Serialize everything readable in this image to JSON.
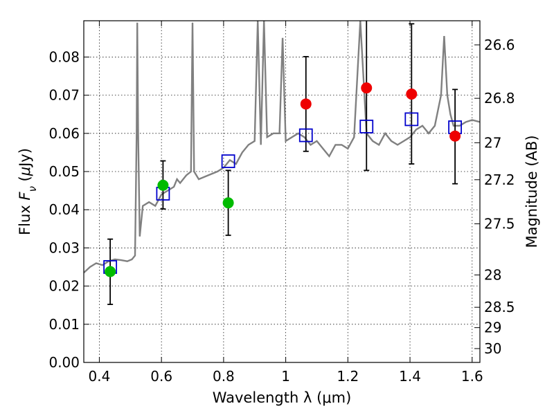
{
  "chart_data": {
    "type": "scatter",
    "xlabel": "Wavelength  λ (μm)",
    "ylabel": "Flux  Fν  (μJy)",
    "y2label": "Magnitude (AB)",
    "xlim": [
      0.35,
      1.625
    ],
    "ylim": [
      0.0,
      0.0895
    ],
    "grid": true,
    "x_ticks": [
      0.4,
      0.6,
      0.8,
      1.0,
      1.2,
      1.4,
      1.6
    ],
    "x_tick_labels": [
      "0.4",
      "0.6",
      "0.8",
      "1",
      "1.2",
      "1.4",
      "1.6"
    ],
    "y_ticks": [
      0.0,
      0.01,
      0.02,
      0.03,
      0.04,
      0.05,
      0.06,
      0.07,
      0.08
    ],
    "y_tick_labels": [
      "0.00",
      "0.01",
      "0.02",
      "0.03",
      "0.04",
      "0.05",
      "0.06",
      "0.07",
      "0.08"
    ],
    "y2_ticks": [
      {
        "mag": 26.6,
        "label": "26.6"
      },
      {
        "mag": 26.8,
        "label": "26.8"
      },
      {
        "mag": 27.0,
        "label": "27"
      },
      {
        "mag": 27.2,
        "label": "27.2"
      },
      {
        "mag": 27.5,
        "label": "27.5"
      },
      {
        "mag": 28.0,
        "label": "28"
      },
      {
        "mag": 28.5,
        "label": "28.5"
      },
      {
        "mag": 29.0,
        "label": "29"
      },
      {
        "mag": 30.0,
        "label": "30"
      }
    ],
    "series": [
      {
        "type": "line",
        "color": "#808080",
        "x": [
          0.35,
          0.37,
          0.39,
          0.41,
          0.43,
          0.45,
          0.47,
          0.49,
          0.505,
          0.515,
          0.52,
          0.522,
          0.525,
          0.53,
          0.54,
          0.56,
          0.58,
          0.6,
          0.62,
          0.64,
          0.65,
          0.66,
          0.68,
          0.695,
          0.7,
          0.705,
          0.72,
          0.75,
          0.78,
          0.8,
          0.81,
          0.82,
          0.84,
          0.86,
          0.88,
          0.9,
          0.91,
          0.92,
          0.93,
          0.94,
          0.96,
          0.98,
          0.99,
          1.0,
          1.02,
          1.04,
          1.06,
          1.08,
          1.1,
          1.12,
          1.14,
          1.16,
          1.18,
          1.2,
          1.22,
          1.24,
          1.26,
          1.28,
          1.3,
          1.32,
          1.34,
          1.36,
          1.38,
          1.4,
          1.42,
          1.44,
          1.46,
          1.48,
          1.5,
          1.51,
          1.52,
          1.53,
          1.54,
          1.56,
          1.58,
          1.6,
          1.625
        ],
        "y": [
          0.0235,
          0.025,
          0.026,
          0.0255,
          0.0265,
          0.027,
          0.0268,
          0.0265,
          0.027,
          0.028,
          0.06,
          0.089,
          0.06,
          0.033,
          0.041,
          0.042,
          0.041,
          0.044,
          0.045,
          0.046,
          0.048,
          0.047,
          0.049,
          0.05,
          0.089,
          0.05,
          0.048,
          0.049,
          0.05,
          0.051,
          0.052,
          0.053,
          0.052,
          0.055,
          0.057,
          0.058,
          0.0895,
          0.057,
          0.0895,
          0.059,
          0.06,
          0.06,
          0.085,
          0.058,
          0.059,
          0.06,
          0.059,
          0.057,
          0.058,
          0.056,
          0.054,
          0.057,
          0.057,
          0.056,
          0.059,
          0.0895,
          0.06,
          0.058,
          0.057,
          0.06,
          0.058,
          0.057,
          0.058,
          0.059,
          0.061,
          0.062,
          0.06,
          0.062,
          0.07,
          0.0855,
          0.07,
          0.065,
          0.062,
          0.062,
          0.063,
          0.0635,
          0.063
        ]
      },
      {
        "name": "",
        "marker": "open-square",
        "color": "#0000cc",
        "x": [
          0.435,
          0.605,
          0.815,
          1.065,
          1.26,
          1.405,
          1.545
        ],
        "y": [
          0.025,
          0.0442,
          0.0527,
          0.0595,
          0.0618,
          0.0637,
          0.0616
        ]
      },
      {
        "name": "",
        "marker": "circle",
        "color": "#00bb00",
        "x": [
          0.435,
          0.605,
          0.815
        ],
        "y": [
          0.0238,
          0.0464,
          0.0418
        ],
        "yerr_low": [
          0.0152,
          0.0402,
          0.0333
        ],
        "yerr_high": [
          0.0323,
          0.0528,
          0.0503
        ]
      },
      {
        "name": "",
        "marker": "circle",
        "color": "#ee0000",
        "x": [
          1.065,
          1.26,
          1.405,
          1.545
        ],
        "y": [
          0.0677,
          0.0719,
          0.0703,
          0.0593
        ],
        "yerr_low": [
          0.0553,
          0.0503,
          0.052,
          0.0468
        ],
        "yerr_high": [
          0.0801,
          0.0895,
          0.0887,
          0.0715
        ]
      }
    ]
  }
}
